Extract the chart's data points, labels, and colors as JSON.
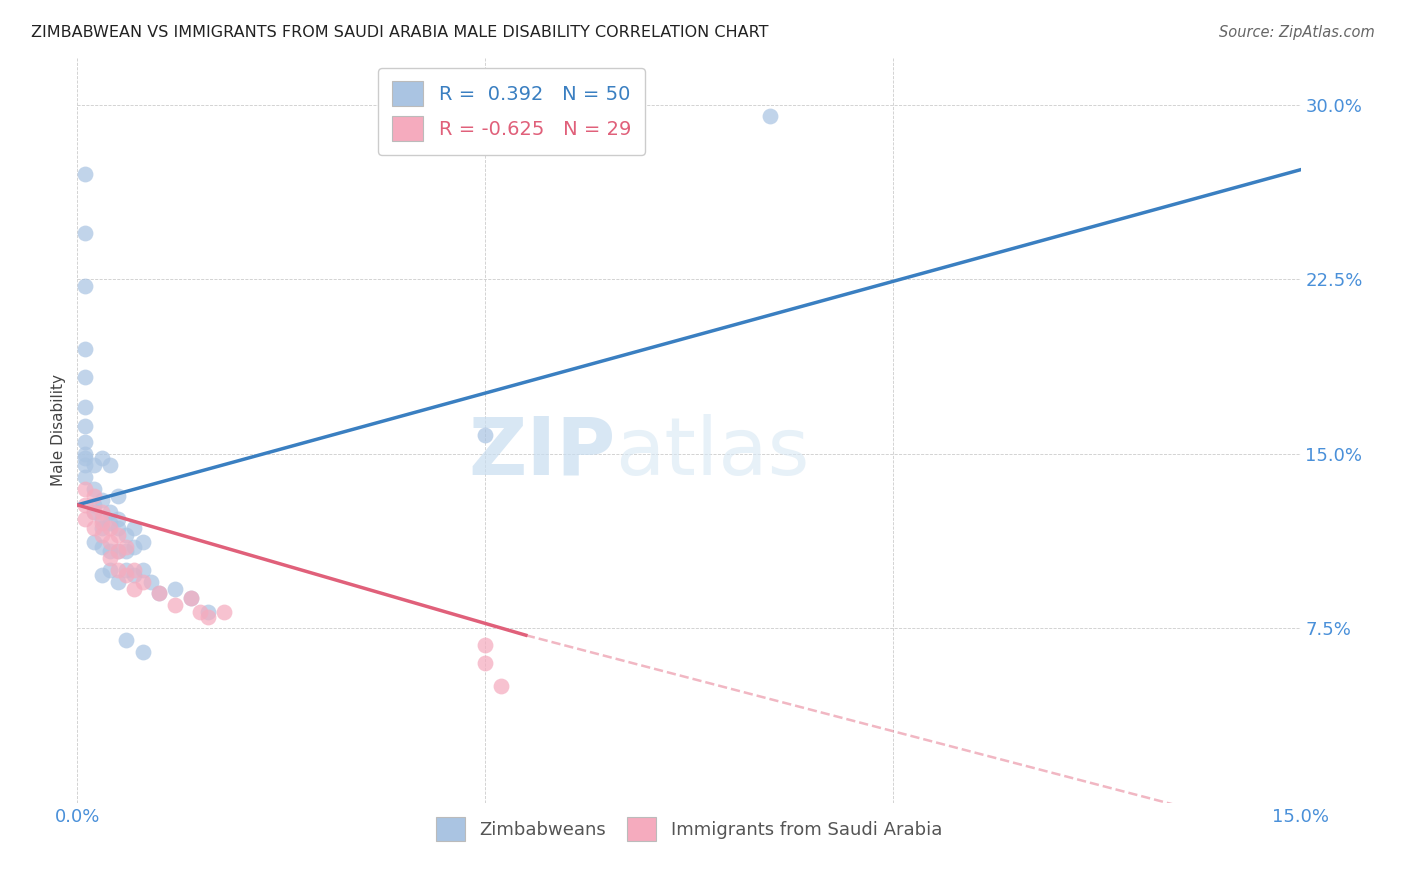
{
  "title": "ZIMBABWEAN VS IMMIGRANTS FROM SAUDI ARABIA MALE DISABILITY CORRELATION CHART",
  "source": "Source: ZipAtlas.com",
  "ylabel": "Male Disability",
  "xlim": [
    0.0,
    0.15
  ],
  "ylim": [
    0.0,
    0.32
  ],
  "xticks": [
    0.0,
    0.05,
    0.1,
    0.15
  ],
  "xtick_labels": [
    "0.0%",
    "",
    "",
    "15.0%"
  ],
  "yticks": [
    0.0,
    0.075,
    0.15,
    0.225,
    0.3
  ],
  "ytick_labels": [
    "",
    "7.5%",
    "15.0%",
    "22.5%",
    "30.0%"
  ],
  "r_zimbabwean": 0.392,
  "n_zimbabwean": 50,
  "r_saudi": -0.625,
  "n_saudi": 29,
  "blue_color": "#aac4e2",
  "pink_color": "#f5abbe",
  "blue_line_color": "#3a7fc1",
  "pink_line_color": "#e0607a",
  "watermark_zip": "ZIP",
  "watermark_atlas": "atlas",
  "blue_line": [
    [
      0.0,
      0.128
    ],
    [
      0.15,
      0.272
    ]
  ],
  "pink_line_solid": [
    [
      0.0,
      0.128
    ],
    [
      0.055,
      0.072
    ]
  ],
  "pink_line_dash": [
    [
      0.055,
      0.072
    ],
    [
      0.15,
      -0.015
    ]
  ],
  "zimbabwean_points": [
    [
      0.001,
      0.27
    ],
    [
      0.001,
      0.245
    ],
    [
      0.001,
      0.222
    ],
    [
      0.001,
      0.195
    ],
    [
      0.001,
      0.183
    ],
    [
      0.001,
      0.17
    ],
    [
      0.001,
      0.162
    ],
    [
      0.001,
      0.155
    ],
    [
      0.001,
      0.15
    ],
    [
      0.001,
      0.148
    ],
    [
      0.001,
      0.145
    ],
    [
      0.002,
      0.145
    ],
    [
      0.001,
      0.14
    ],
    [
      0.002,
      0.135
    ],
    [
      0.003,
      0.148
    ],
    [
      0.002,
      0.128
    ],
    [
      0.003,
      0.13
    ],
    [
      0.004,
      0.145
    ],
    [
      0.002,
      0.125
    ],
    [
      0.003,
      0.122
    ],
    [
      0.003,
      0.118
    ],
    [
      0.004,
      0.125
    ],
    [
      0.005,
      0.132
    ],
    [
      0.004,
      0.12
    ],
    [
      0.002,
      0.112
    ],
    [
      0.003,
      0.11
    ],
    [
      0.004,
      0.108
    ],
    [
      0.005,
      0.122
    ],
    [
      0.005,
      0.118
    ],
    [
      0.004,
      0.1
    ],
    [
      0.003,
      0.098
    ],
    [
      0.005,
      0.108
    ],
    [
      0.006,
      0.115
    ],
    [
      0.007,
      0.118
    ],
    [
      0.006,
      0.108
    ],
    [
      0.007,
      0.11
    ],
    [
      0.008,
      0.112
    ],
    [
      0.005,
      0.095
    ],
    [
      0.006,
      0.1
    ],
    [
      0.007,
      0.098
    ],
    [
      0.008,
      0.1
    ],
    [
      0.009,
      0.095
    ],
    [
      0.01,
      0.09
    ],
    [
      0.012,
      0.092
    ],
    [
      0.014,
      0.088
    ],
    [
      0.016,
      0.082
    ],
    [
      0.006,
      0.07
    ],
    [
      0.008,
      0.065
    ],
    [
      0.05,
      0.158
    ],
    [
      0.085,
      0.295
    ]
  ],
  "saudi_points": [
    [
      0.001,
      0.135
    ],
    [
      0.001,
      0.128
    ],
    [
      0.002,
      0.132
    ],
    [
      0.001,
      0.122
    ],
    [
      0.002,
      0.125
    ],
    [
      0.002,
      0.118
    ],
    [
      0.003,
      0.125
    ],
    [
      0.003,
      0.12
    ],
    [
      0.003,
      0.115
    ],
    [
      0.004,
      0.118
    ],
    [
      0.004,
      0.112
    ],
    [
      0.005,
      0.115
    ],
    [
      0.005,
      0.108
    ],
    [
      0.006,
      0.11
    ],
    [
      0.004,
      0.105
    ],
    [
      0.005,
      0.1
    ],
    [
      0.006,
      0.098
    ],
    [
      0.007,
      0.1
    ],
    [
      0.007,
      0.092
    ],
    [
      0.008,
      0.095
    ],
    [
      0.01,
      0.09
    ],
    [
      0.012,
      0.085
    ],
    [
      0.014,
      0.088
    ],
    [
      0.015,
      0.082
    ],
    [
      0.016,
      0.08
    ],
    [
      0.018,
      0.082
    ],
    [
      0.05,
      0.068
    ],
    [
      0.05,
      0.06
    ],
    [
      0.052,
      0.05
    ]
  ]
}
